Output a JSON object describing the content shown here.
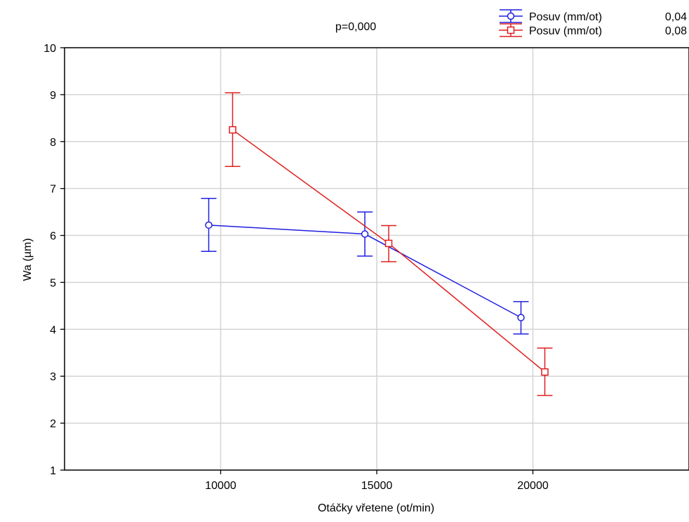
{
  "chart_data": {
    "type": "line",
    "annotation": "p=0,000",
    "xlabel": "Otáčky vřetene (ot/min)",
    "ylabel": "Wa (µm)",
    "xlim": [
      5000,
      25000
    ],
    "ylim": [
      1,
      10
    ],
    "x_ticks": [
      10000,
      15000,
      20000
    ],
    "x_tick_labels": [
      "10000",
      "15000",
      "20000"
    ],
    "y_ticks": [
      1,
      2,
      3,
      4,
      5,
      6,
      7,
      8,
      9,
      10
    ],
    "y_tick_labels": [
      "1",
      "2",
      "3",
      "4",
      "5",
      "6",
      "7",
      "8",
      "9",
      "10"
    ],
    "grid": true,
    "legend_position": "top-right",
    "series": [
      {
        "name": "Posuv (mm/ot)",
        "level": "0,04",
        "color": "#1f1fdf",
        "marker": "circle",
        "x": [
          10000,
          15000,
          20000
        ],
        "y": [
          6.22,
          6.03,
          4.25
        ],
        "y_lower": [
          5.66,
          5.56,
          3.9
        ],
        "y_upper": [
          6.79,
          6.5,
          4.59
        ]
      },
      {
        "name": "Posuv (mm/ot)",
        "level": "0,08",
        "color": "#df1f1f",
        "marker": "square",
        "x": [
          10000,
          15000,
          20000
        ],
        "y": [
          8.25,
          5.83,
          3.09
        ],
        "y_lower": [
          7.47,
          5.44,
          2.59
        ],
        "y_upper": [
          9.04,
          6.21,
          3.6
        ]
      }
    ]
  }
}
